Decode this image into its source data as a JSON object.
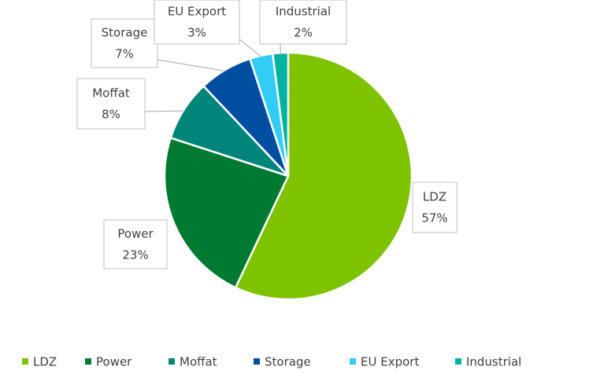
{
  "chart_data": {
    "type": "pie",
    "categories": [
      "LDZ",
      "Power",
      "Moffat",
      "Storage",
      "EU Export",
      "Industrial"
    ],
    "values": [
      57,
      23,
      8,
      7,
      3,
      2
    ],
    "value_labels": [
      "57%",
      "23%",
      "8%",
      "7%",
      "3%",
      "2%"
    ],
    "colors": [
      "#7dc300",
      "#007a33",
      "#00857a",
      "#004ea0",
      "#33ccf5",
      "#00b3a0"
    ],
    "legend": "bottom"
  }
}
